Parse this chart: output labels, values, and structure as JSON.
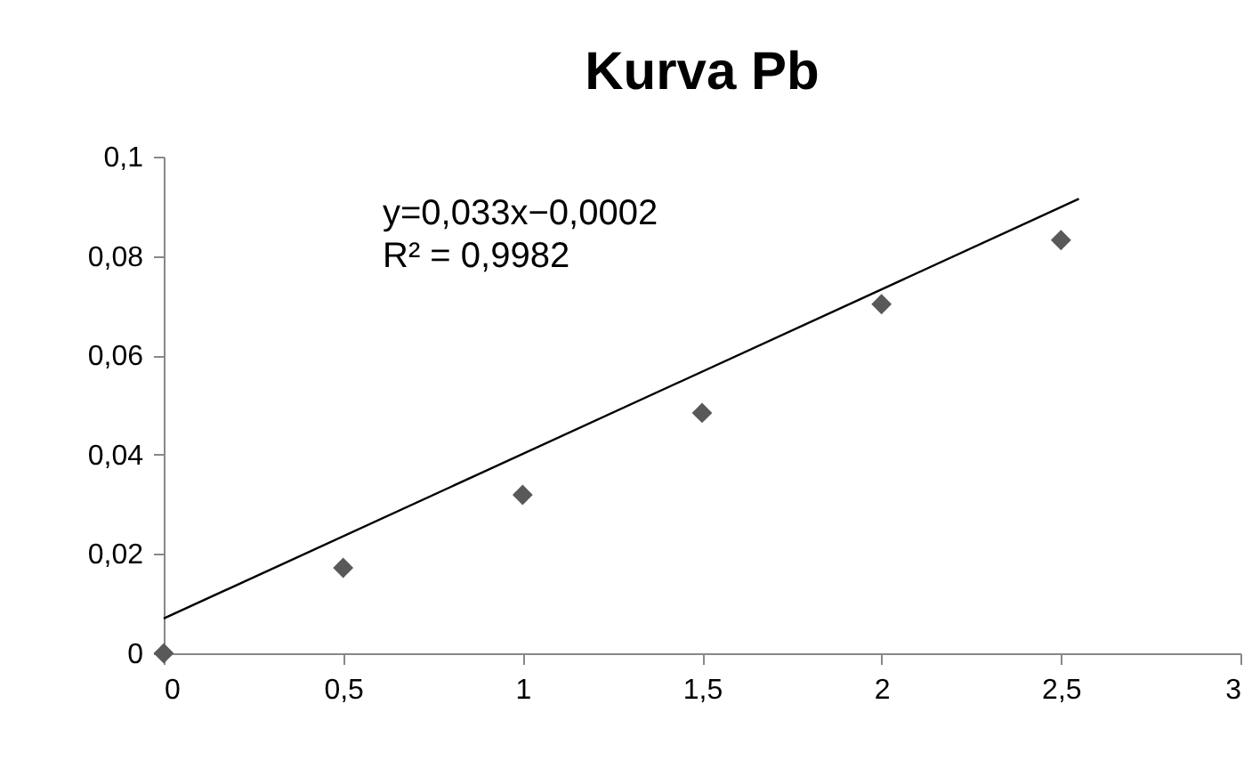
{
  "chart_data": {
    "type": "scatter",
    "title": "Kurva Pb",
    "annotations": [
      "y=0,033x−0,0002",
      "R² = 0,9982"
    ],
    "series": [
      {
        "color": "#595959",
        "marker": "diamond",
        "x": [
          0,
          0.5,
          1,
          1.5,
          2,
          2.5
        ],
        "values": [
          0,
          0.0172,
          0.0319,
          0.0484,
          0.0703,
          0.0832
        ]
      },
      {
        "type": "line",
        "color": "#000000",
        "x": [
          0,
          2.55
        ],
        "values": [
          0.007,
          0.0915
        ]
      }
    ],
    "xlim": [
      0,
      3
    ],
    "xticks": [
      0,
      {
        "value": 0.5,
        "label": "0,5"
      },
      1,
      {
        "value": 1.5,
        "label": "1,5"
      },
      2,
      {
        "value": 2.5,
        "label": "2,5"
      },
      3
    ],
    "ylim": [
      0,
      0.1
    ],
    "yticks": [
      0,
      {
        "value": 0.02,
        "label": "0,02"
      },
      {
        "value": 0.04,
        "label": "0,04"
      },
      {
        "value": 0.06,
        "label": "0,06"
      },
      {
        "value": 0.08,
        "label": "0,08"
      },
      {
        "value": 0.1,
        "label": "0,1"
      }
    ],
    "grid": false
  }
}
